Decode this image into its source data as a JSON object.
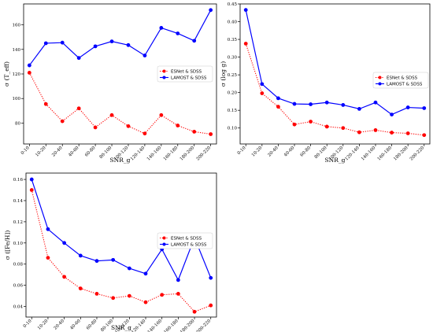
{
  "chart_data": [
    {
      "type": "line",
      "categories": [
        "0-10",
        "10-20",
        "20-40",
        "40-60",
        "60-80",
        "80-100",
        "100-120",
        "120-140",
        "140-160",
        "160-180",
        "180-200",
        "200-220"
      ],
      "series": [
        {
          "name": "ESNet & SDSS",
          "color": "#ff0000",
          "style": "dotted",
          "values": [
            121,
            95.5,
            81.5,
            92,
            76.5,
            86.5,
            77.5,
            71.5,
            86.5,
            78,
            73,
            71
          ]
        },
        {
          "name": "LAMOST & SDSS",
          "color": "#0000ff",
          "style": "solid",
          "values": [
            127,
            145,
            145.5,
            133,
            142.5,
            146.5,
            143.5,
            135,
            157.5,
            153,
            147,
            172
          ]
        }
      ],
      "xlabel": "SNR_g",
      "ylabel": "σ (T_eff)",
      "ylim": [
        63,
        177
      ],
      "yticks": [
        80,
        100,
        120,
        140,
        160
      ],
      "ytick_labels": [
        "80",
        "100",
        "120",
        "140",
        "160"
      ],
      "legend": "center-right"
    },
    {
      "type": "line",
      "categories": [
        "0-10",
        "10-20",
        "20-40",
        "40-60",
        "60-80",
        "80-100",
        "100-120",
        "120-140",
        "140-160",
        "160-180",
        "180-200",
        "200-220"
      ],
      "series": [
        {
          "name": "ESNet & SDSS",
          "color": "#ff0000",
          "style": "dotted",
          "values": [
            0.338,
            0.198,
            0.16,
            0.11,
            0.118,
            0.104,
            0.1,
            0.088,
            0.094,
            0.087,
            0.085,
            0.08
          ]
        },
        {
          "name": "LAMOST & SDSS",
          "color": "#0000ff",
          "style": "solid",
          "values": [
            0.433,
            0.224,
            0.184,
            0.168,
            0.167,
            0.172,
            0.165,
            0.154,
            0.172,
            0.138,
            0.158,
            0.156
          ]
        }
      ],
      "xlabel": "SNR_g",
      "ylabel": "σ (log g)",
      "ylim": [
        0.055,
        0.45
      ],
      "yticks": [
        0.1,
        0.15,
        0.2,
        0.25,
        0.3,
        0.35,
        0.4,
        0.45
      ],
      "ytick_labels": [
        "0.10",
        "0.15",
        "0.20",
        "0.25",
        "0.30",
        "0.35",
        "0.40",
        "0.45"
      ],
      "legend": "center-right"
    },
    {
      "type": "line",
      "categories": [
        "0-10",
        "10-20",
        "20-40",
        "40-60",
        "60-80",
        "80-100",
        "100-120",
        "120-140",
        "140-160",
        "160-180",
        "180-200",
        "200-220"
      ],
      "series": [
        {
          "name": "ESNet & SDSS",
          "color": "#ff0000",
          "style": "dotted",
          "values": [
            0.15,
            0.086,
            0.068,
            0.057,
            0.052,
            0.048,
            0.05,
            0.044,
            0.051,
            0.052,
            0.035,
            0.041
          ]
        },
        {
          "name": "LAMOST & SDSS",
          "color": "#0000ff",
          "style": "solid",
          "values": [
            0.16,
            0.113,
            0.1,
            0.088,
            0.083,
            0.084,
            0.076,
            0.071,
            0.094,
            0.065,
            0.105,
            0.067
          ]
        }
      ],
      "xlabel": "SNR_g",
      "ylabel": "σ ([Fe/H])",
      "ylim": [
        0.03,
        0.166
      ],
      "yticks": [
        0.04,
        0.06,
        0.08,
        0.1,
        0.12,
        0.14,
        0.16
      ],
      "ytick_labels": [
        "0.04",
        "0.06",
        "0.08",
        "0.10",
        "0.12",
        "0.14",
        "0.16"
      ],
      "legend": "center-right"
    }
  ]
}
